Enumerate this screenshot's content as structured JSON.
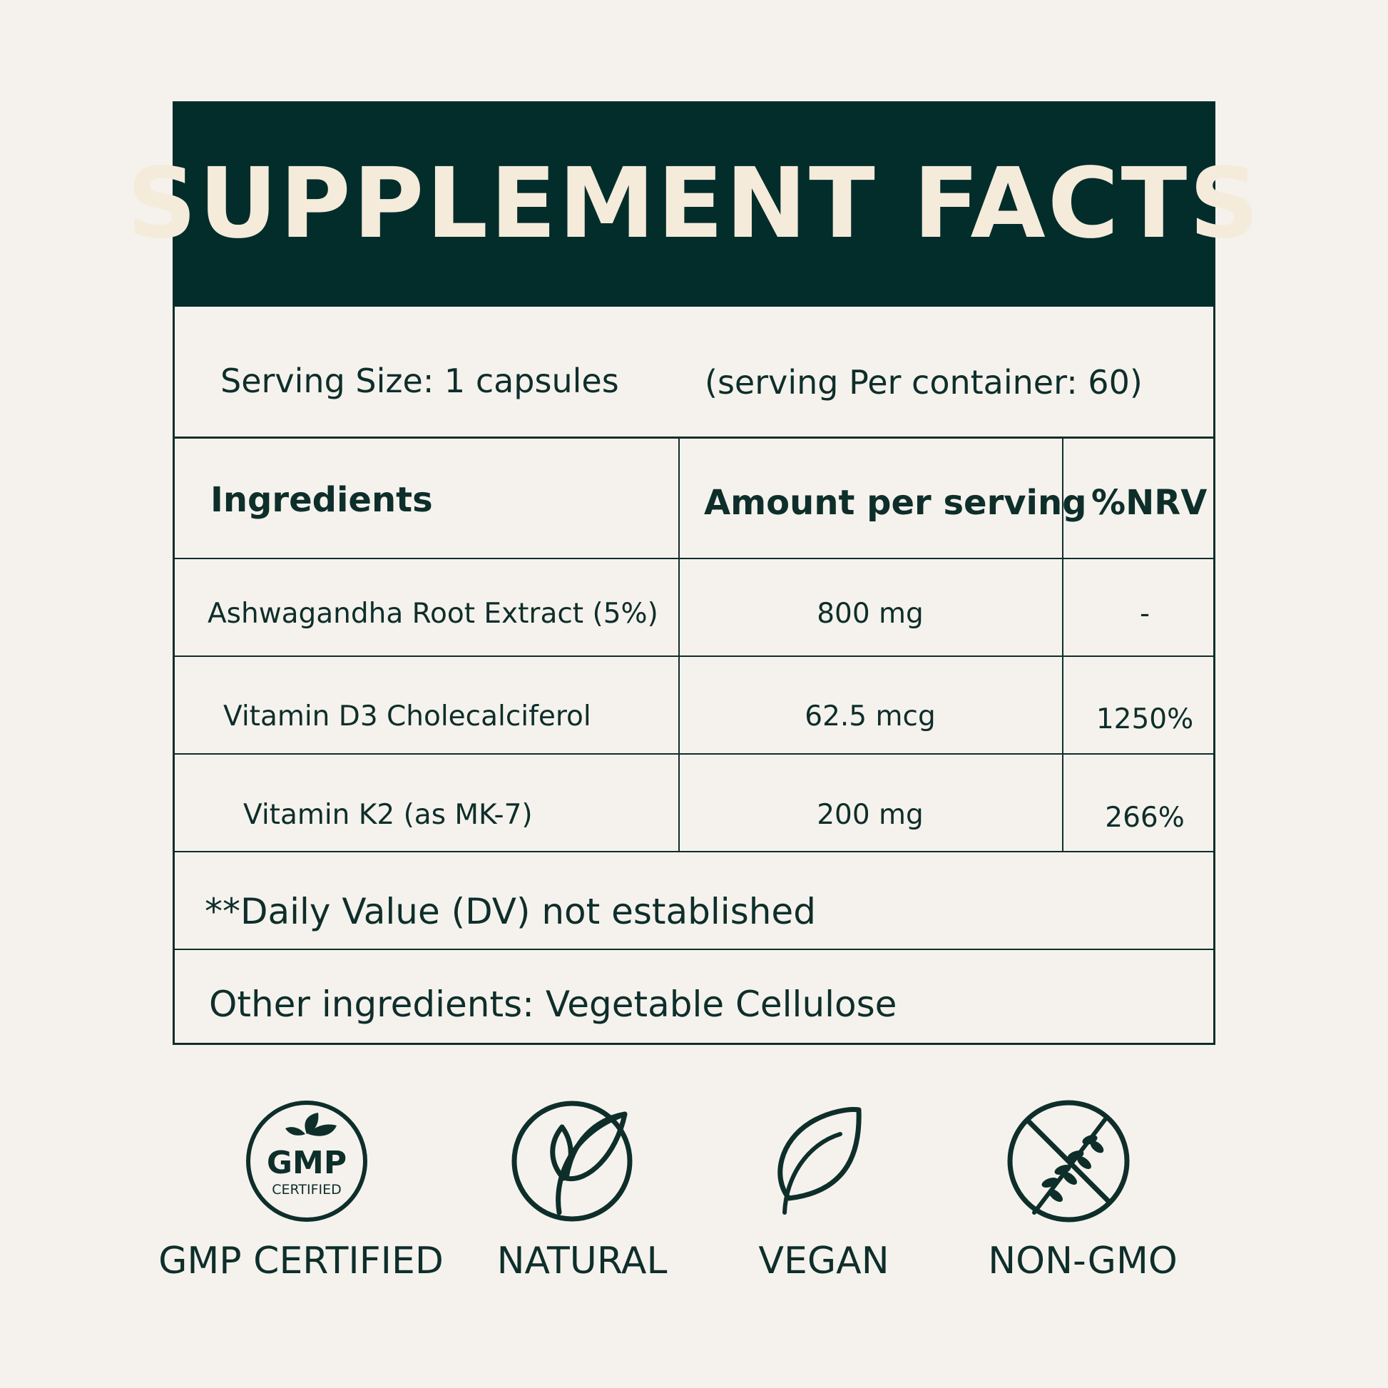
{
  "title": "SUPPLEMENT FACTS",
  "serving": {
    "size": "Serving Size: 1 capsules",
    "per_container": "(serving Per container: 60)"
  },
  "table": {
    "headers": [
      "Ingredients",
      "Amount per serving",
      "%NRV"
    ],
    "rows": [
      {
        "ingredient": "Ashwagandha Root Extract (5%)",
        "amount": "800 mg",
        "nrv": "-"
      },
      {
        "ingredient": "Vitamin D3 Cholecalciferol",
        "amount": "62.5 mcg",
        "nrv": "1250%"
      },
      {
        "ingredient": "Vitamin K2 (as MK-7)",
        "amount": "200 mg",
        "nrv": "266%"
      }
    ]
  },
  "footnote": "**Daily Value (DV) not established",
  "other_ingredients": "Other ingredients: Vegetable Cellulose",
  "badges": [
    {
      "label": "GMP CERTIFIED",
      "icon": "gmp-certified-icon",
      "icon_text": "GMP",
      "icon_subtext": "CERTIFIED"
    },
    {
      "label": "NATURAL",
      "icon": "leaf-circle-icon"
    },
    {
      "label": "VEGAN",
      "icon": "leaf-icon"
    },
    {
      "label": "NON-GMO",
      "icon": "crossed-wheat-icon"
    }
  ],
  "colors": {
    "background": "#f5f2ed",
    "header": "#022d2b",
    "header_text": "#f5ebdb",
    "ink": "#0e2e2a"
  }
}
